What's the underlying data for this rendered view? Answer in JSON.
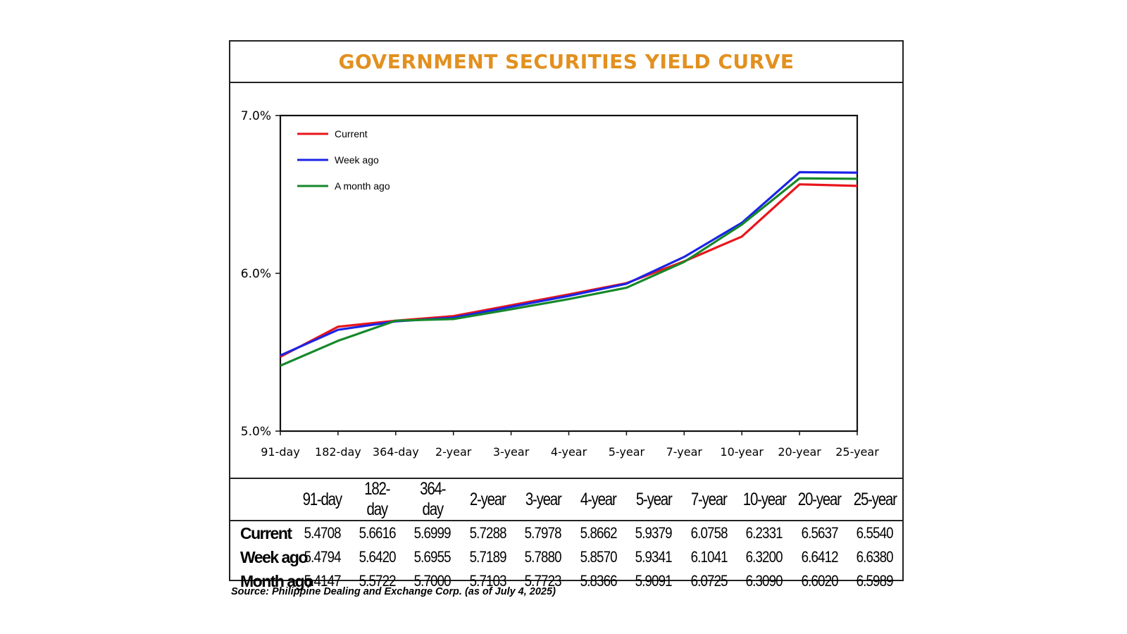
{
  "chart_data": {
    "type": "line",
    "title": "GOVERNMENT SECURITIES YIELD CURVE",
    "categories": [
      "91-day",
      "182-day",
      "364-day",
      "2-year",
      "3-year",
      "4-year",
      "5-year",
      "7-year",
      "10-year",
      "20-year",
      "25-year"
    ],
    "y_ticks": [
      "7.0%",
      "6.0%",
      "5.0%"
    ],
    "ylim": [
      5.0,
      7.0
    ],
    "grid": false,
    "legend_position": "top-left",
    "series": [
      {
        "name": "Current",
        "color": "#e8161b",
        "values": [
          5.4708,
          5.6616,
          5.6999,
          5.7288,
          5.7978,
          5.8662,
          5.9379,
          6.0758,
          6.2331,
          6.5637,
          6.554
        ]
      },
      {
        "name": "Week ago",
        "color": "#1b24e6",
        "values": [
          5.4794,
          5.642,
          5.6955,
          5.7189,
          5.788,
          5.857,
          5.9341,
          6.1041,
          6.32,
          6.6412,
          6.638
        ]
      },
      {
        "name": "A month ago",
        "color": "#16882a",
        "values": [
          5.4147,
          5.5722,
          5.7,
          5.7103,
          5.7723,
          5.8366,
          5.9091,
          6.0725,
          6.309,
          6.602,
          6.5989
        ]
      }
    ]
  },
  "table": {
    "columns": [
      "91-day",
      "182-day",
      "364-day",
      "2-year",
      "3-year",
      "4-year",
      "5-year",
      "7-year",
      "10-year",
      "20-year",
      "25-year"
    ],
    "rows": [
      {
        "label": "Current",
        "values": [
          "5.4708",
          "5.6616",
          "5.6999",
          "5.7288",
          "5.7978",
          "5.8662",
          "5.9379",
          "6.0758",
          "6.2331",
          "6.5637",
          "6.5540"
        ]
      },
      {
        "label": "Week ago",
        "values": [
          "5.4794",
          "5.6420",
          "5.6955",
          "5.7189",
          "5.7880",
          "5.8570",
          "5.9341",
          "6.1041",
          "6.3200",
          "6.6412",
          "6.6380"
        ]
      },
      {
        "label": "Month ago",
        "values": [
          "5.4147",
          "5.5722",
          "5.7000",
          "5.7103",
          "5.7723",
          "5.8366",
          "5.9091",
          "6.0725",
          "6.3090",
          "6.6020",
          "6.5989"
        ]
      }
    ]
  },
  "source": "Source: Philippine Dealing and Exchange Corp. (as of July 4, 2025)"
}
